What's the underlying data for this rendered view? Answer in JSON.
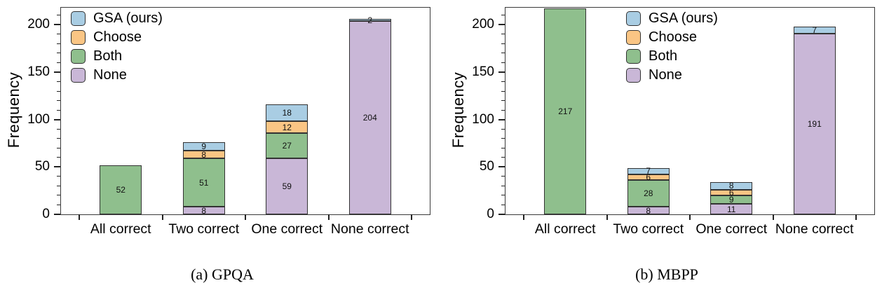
{
  "figure": {
    "background": "#ffffff",
    "frame_color": "#3a3a3a",
    "tick_color": "#222222",
    "text_color": "#000000"
  },
  "chart_data": [
    {
      "type": "bar",
      "stacked": true,
      "title": "(a) GPQA",
      "xlabel": "",
      "ylabel": "Frequency",
      "ylim": [
        0,
        218
      ],
      "yticks": [
        0,
        50,
        100,
        150,
        200
      ],
      "ytick_minor_step": 10,
      "grid": false,
      "legend_position": "upper-left",
      "legend_order": [
        "GSA (ours)",
        "Choose",
        "Both",
        "None"
      ],
      "categories": [
        "All correct",
        "Two correct",
        "One correct",
        "None correct"
      ],
      "series": [
        {
          "name": "None",
          "color": "#c9b7d7",
          "values": [
            0,
            8,
            59,
            204
          ]
        },
        {
          "name": "Both",
          "color": "#8fbf8d",
          "values": [
            52,
            51,
            27,
            0
          ]
        },
        {
          "name": "Choose",
          "color": "#fac584",
          "values": [
            0,
            8,
            12,
            0
          ]
        },
        {
          "name": "GSA (ours)",
          "color": "#a9cde3",
          "values": [
            0,
            9,
            18,
            2
          ]
        }
      ]
    },
    {
      "type": "bar",
      "stacked": true,
      "title": "(b) MBPP",
      "xlabel": "",
      "ylabel": "Frequency",
      "ylim": [
        0,
        218
      ],
      "yticks": [
        0,
        50,
        100,
        150,
        200
      ],
      "ytick_minor_step": 10,
      "grid": false,
      "legend_position": "upper-center",
      "legend_order": [
        "GSA (ours)",
        "Choose",
        "Both",
        "None"
      ],
      "categories": [
        "All correct",
        "Two correct",
        "One correct",
        "None correct"
      ],
      "series": [
        {
          "name": "None",
          "color": "#c9b7d7",
          "values": [
            0,
            8,
            11,
            191
          ]
        },
        {
          "name": "Both",
          "color": "#8fbf8d",
          "values": [
            217,
            28,
            9,
            0
          ]
        },
        {
          "name": "Choose",
          "color": "#fac584",
          "values": [
            0,
            6,
            6,
            0
          ]
        },
        {
          "name": "GSA (ours)",
          "color": "#a9cde3",
          "values": [
            0,
            7,
            8,
            7
          ]
        }
      ]
    }
  ]
}
